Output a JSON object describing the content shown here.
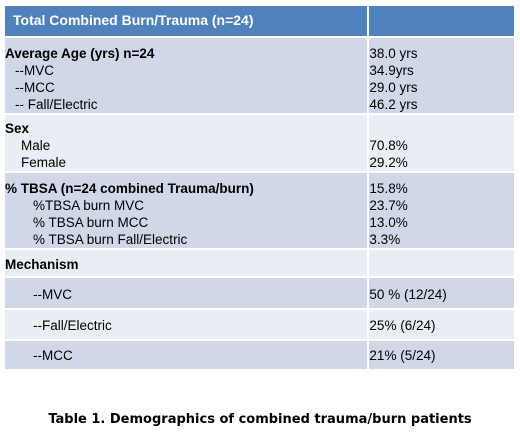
{
  "table": {
    "header": {
      "label": "Total Combined Burn/Trauma  (n=24)",
      "value": ""
    },
    "age": {
      "title": "Average Age (yrs) n=24",
      "title_value": "38.0 yrs",
      "items": [
        {
          "label": "--MVC",
          "value": "34.9yrs"
        },
        {
          "label": "--MCC",
          "value": "29.0 yrs"
        },
        {
          "label": "-- Fall/Electric",
          "value": "46.2 yrs"
        }
      ]
    },
    "sex": {
      "title": "Sex",
      "items": [
        {
          "label": "Male",
          "value": "70.8%"
        },
        {
          "label": "Female",
          "value": "29.2%"
        }
      ]
    },
    "tbsa": {
      "title": "% TBSA (n=24 combined Trauma/burn)",
      "title_value": "15.8%",
      "items": [
        {
          "label": "%TBSA burn MVC",
          "value": "23.7%"
        },
        {
          "label": "% TBSA burn MCC",
          "value": "13.0%"
        },
        {
          "label": "% TBSA burn Fall/Electric",
          "value": "3.3%"
        }
      ]
    },
    "mechanism": {
      "title": "Mechanism",
      "items": [
        {
          "label": "--MVC",
          "value": "50 % (12/24)"
        },
        {
          "label": "--Fall/Electric",
          "value": "25% (6/24)"
        },
        {
          "label": "--MCC",
          "value": "21% (5/24)"
        }
      ]
    }
  },
  "caption": "Table 1. Demographics of combined trauma/burn patients",
  "colors": {
    "header": "#4f81bd",
    "band_dark": "#d0d8e8",
    "band_light": "#e9edf4"
  }
}
